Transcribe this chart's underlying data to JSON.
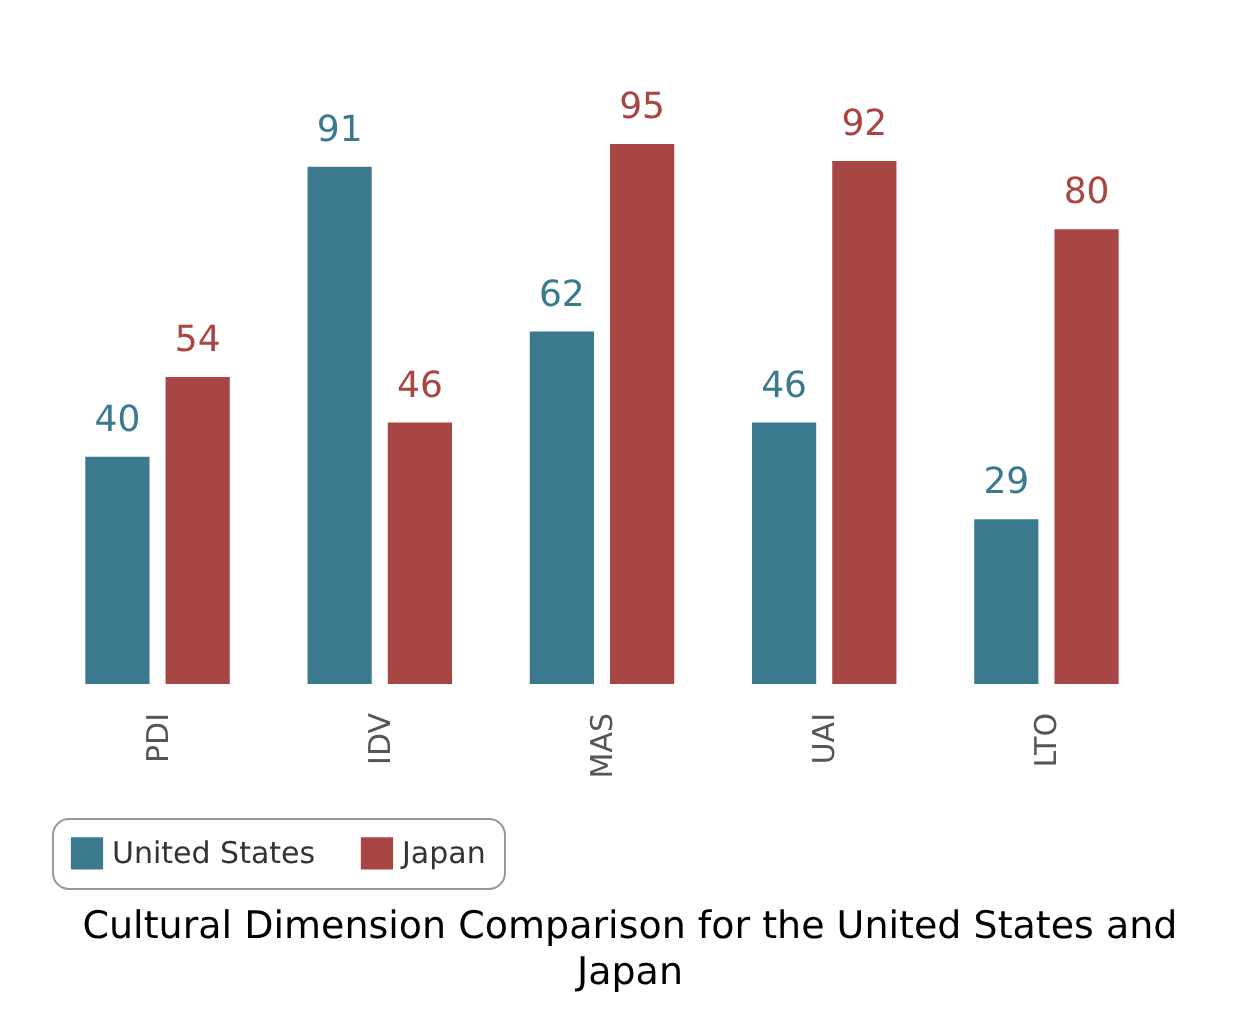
{
  "chart_data": {
    "type": "bar",
    "categories": [
      "PDI",
      "IDV",
      "MAS",
      "UAI",
      "LTO"
    ],
    "series": [
      {
        "name": "United States",
        "color": "#3b7a8e",
        "values": [
          40,
          91,
          62,
          46,
          29
        ]
      },
      {
        "name": "Japan",
        "color": "#a84644",
        "values": [
          54,
          46,
          95,
          92,
          80
        ]
      }
    ],
    "data_labels": true,
    "legend": "bottom",
    "annotations": [
      "Cultural Dimension Comparison for the United States and Japan"
    ]
  }
}
